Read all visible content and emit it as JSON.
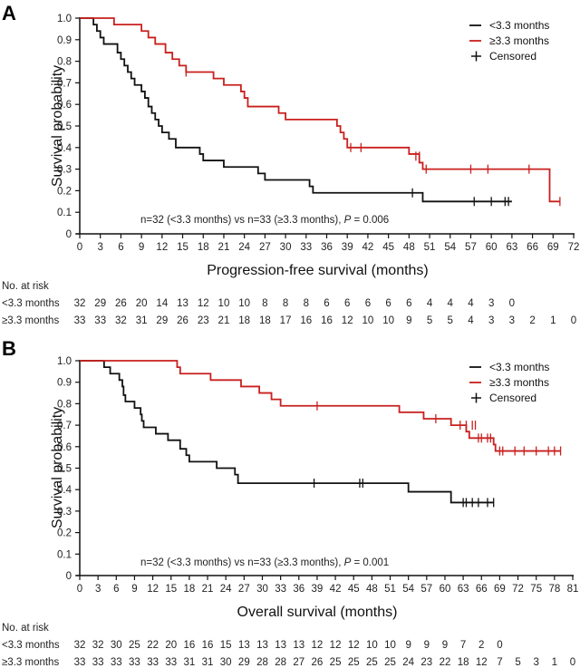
{
  "chart_data": [
    {
      "type": "line",
      "panel": "A",
      "xlabel": "Progression-free survival (months)",
      "ylabel": "Survival probability",
      "xlim": [
        0,
        72
      ],
      "ylim": [
        0,
        1.0
      ],
      "xticks": [
        0,
        3,
        6,
        9,
        12,
        15,
        18,
        21,
        24,
        27,
        30,
        33,
        36,
        39,
        42,
        45,
        48,
        51,
        54,
        57,
        60,
        63,
        66,
        69,
        72
      ],
      "yticks": [
        "0",
        "0.1",
        "0.2",
        "0.3",
        "0.4",
        "0.5",
        "0.6",
        "0.7",
        "0.8",
        "0.9",
        "1.0"
      ],
      "legend": {
        "placement": "top-right",
        "entries": [
          "<3.3 months",
          "≥3.3 months",
          "Censored"
        ]
      },
      "annotation": {
        "text": "n=32 (<3.3 months) vs n=33 (≥3.3 months),",
        "p_label": "P",
        "p_value": "= 0.006"
      },
      "series": [
        {
          "name": "<3.3 months",
          "color": "#111111",
          "steps": [
            [
              0,
              1.0
            ],
            [
              2,
              0.97
            ],
            [
              2.5,
              0.94
            ],
            [
              3,
              0.91
            ],
            [
              3.5,
              0.88
            ],
            [
              5.5,
              0.84
            ],
            [
              6,
              0.81
            ],
            [
              6.5,
              0.78
            ],
            [
              7,
              0.75
            ],
            [
              7.5,
              0.72
            ],
            [
              8,
              0.69
            ],
            [
              9,
              0.66
            ],
            [
              9.5,
              0.63
            ],
            [
              10,
              0.59
            ],
            [
              10.5,
              0.56
            ],
            [
              11,
              0.53
            ],
            [
              11.5,
              0.5
            ],
            [
              12,
              0.47
            ],
            [
              13,
              0.44
            ],
            [
              14,
              0.4
            ],
            [
              17.5,
              0.37
            ],
            [
              18,
              0.34
            ],
            [
              21,
              0.31
            ],
            [
              26,
              0.28
            ],
            [
              27,
              0.25
            ],
            [
              33.5,
              0.22
            ],
            [
              34,
              0.19
            ],
            [
              50,
              0.15
            ]
          ],
          "end": 63,
          "censored": [
            [
              48.5,
              0.19
            ],
            [
              57.5,
              0.15
            ],
            [
              60,
              0.15
            ],
            [
              62,
              0.15
            ],
            [
              62.5,
              0.15
            ]
          ]
        },
        {
          "name": "≥3.3 months",
          "color": "#c8201e",
          "steps": [
            [
              0,
              1.0
            ],
            [
              5,
              0.97
            ],
            [
              9,
              0.94
            ],
            [
              10,
              0.91
            ],
            [
              11,
              0.88
            ],
            [
              12.5,
              0.84
            ],
            [
              13.5,
              0.81
            ],
            [
              14.5,
              0.78
            ],
            [
              15.5,
              0.75
            ],
            [
              19.5,
              0.72
            ],
            [
              21,
              0.69
            ],
            [
              23.5,
              0.66
            ],
            [
              24,
              0.63
            ],
            [
              24.5,
              0.59
            ],
            [
              29,
              0.56
            ],
            [
              30,
              0.53
            ],
            [
              37.5,
              0.5
            ],
            [
              38,
              0.47
            ],
            [
              38.5,
              0.44
            ],
            [
              39,
              0.4
            ],
            [
              48,
              0.37
            ],
            [
              49.5,
              0.33
            ],
            [
              50,
              0.3
            ],
            [
              68.5,
              0.15
            ]
          ],
          "end": 70,
          "censored": [
            [
              15.5,
              0.75
            ],
            [
              39.5,
              0.4
            ],
            [
              41,
              0.4
            ],
            [
              49,
              0.36
            ],
            [
              49.5,
              0.36
            ],
            [
              50.5,
              0.3
            ],
            [
              57,
              0.3
            ],
            [
              59.5,
              0.3
            ],
            [
              65.5,
              0.3
            ],
            [
              70,
              0.15
            ]
          ]
        }
      ],
      "risk_table": {
        "title": "No. at risk",
        "rows": [
          {
            "label": "<3.3 months",
            "values": [
              32,
              29,
              26,
              20,
              14,
              13,
              12,
              10,
              10,
              8,
              8,
              8,
              6,
              6,
              6,
              6,
              6,
              4,
              4,
              4,
              3,
              0
            ]
          },
          {
            "label": "≥3.3 months",
            "values": [
              33,
              33,
              32,
              31,
              29,
              26,
              23,
              21,
              18,
              18,
              17,
              16,
              16,
              12,
              10,
              10,
              9,
              5,
              5,
              4,
              3,
              3,
              2,
              1,
              0
            ]
          }
        ]
      }
    },
    {
      "type": "line",
      "panel": "B",
      "xlabel": "Overall survival (months)",
      "ylabel": "Survival probability",
      "xlim": [
        0,
        81
      ],
      "ylim": [
        0,
        1.0
      ],
      "xticks": [
        0,
        3,
        6,
        9,
        12,
        15,
        18,
        21,
        24,
        27,
        30,
        33,
        36,
        39,
        42,
        45,
        48,
        51,
        54,
        57,
        60,
        63,
        66,
        69,
        72,
        75,
        78,
        81
      ],
      "yticks": [
        "0",
        "0.1",
        "0.2",
        "0.3",
        "0.4",
        "0.5",
        "0.6",
        "0.7",
        "0.8",
        "0.9",
        "1.0"
      ],
      "legend": {
        "placement": "top-right",
        "entries": [
          "<3.3 months",
          "≥3.3 months",
          "Censored"
        ]
      },
      "annotation": {
        "text": "n=32 (<3.3 months) vs n=33 (≥3.3 months),",
        "p_label": "P",
        "p_value": "= 0.001"
      },
      "series": [
        {
          "name": "<3.3 months",
          "color": "#111111",
          "steps": [
            [
              0,
              1.0
            ],
            [
              4,
              0.97
            ],
            [
              5,
              0.94
            ],
            [
              6.5,
              0.91
            ],
            [
              7,
              0.88
            ],
            [
              7.2,
              0.84
            ],
            [
              7.5,
              0.81
            ],
            [
              9,
              0.78
            ],
            [
              10,
              0.75
            ],
            [
              10.2,
              0.72
            ],
            [
              10.5,
              0.69
            ],
            [
              12.5,
              0.66
            ],
            [
              14.5,
              0.63
            ],
            [
              16.5,
              0.59
            ],
            [
              17.5,
              0.56
            ],
            [
              18,
              0.53
            ],
            [
              22.5,
              0.5
            ],
            [
              25.5,
              0.47
            ],
            [
              26,
              0.43
            ],
            [
              54,
              0.39
            ],
            [
              61,
              0.34
            ]
          ],
          "end": 68,
          "censored": [
            [
              38.5,
              0.43
            ],
            [
              46,
              0.43
            ],
            [
              46.5,
              0.43
            ],
            [
              63,
              0.34
            ],
            [
              63.5,
              0.34
            ],
            [
              64.5,
              0.34
            ],
            [
              65.5,
              0.34
            ],
            [
              67,
              0.34
            ],
            [
              68,
              0.34
            ]
          ]
        },
        {
          "name": "≥3.3 months",
          "color": "#c8201e",
          "steps": [
            [
              0,
              1.0
            ],
            [
              16,
              0.97
            ],
            [
              16.5,
              0.94
            ],
            [
              21.5,
              0.91
            ],
            [
              26.5,
              0.88
            ],
            [
              29.5,
              0.85
            ],
            [
              31.5,
              0.82
            ],
            [
              33,
              0.79
            ],
            [
              52.5,
              0.76
            ],
            [
              56.5,
              0.73
            ],
            [
              61,
              0.7
            ],
            [
              63.5,
              0.67
            ],
            [
              64,
              0.64
            ],
            [
              68,
              0.61
            ],
            [
              68.3,
              0.58
            ]
          ],
          "end": 79,
          "censored": [
            [
              39,
              0.79
            ],
            [
              58.5,
              0.73
            ],
            [
              62.5,
              0.7
            ],
            [
              63.5,
              0.7
            ],
            [
              64.5,
              0.7
            ],
            [
              65,
              0.7
            ],
            [
              65.5,
              0.64
            ],
            [
              66,
              0.64
            ],
            [
              67,
              0.64
            ],
            [
              67.5,
              0.64
            ],
            [
              69,
              0.58
            ],
            [
              69.5,
              0.58
            ],
            [
              71.5,
              0.58
            ],
            [
              73,
              0.58
            ],
            [
              75,
              0.58
            ],
            [
              77,
              0.58
            ],
            [
              78,
              0.58
            ],
            [
              79,
              0.58
            ]
          ]
        }
      ],
      "risk_table": {
        "title": "No. at risk",
        "rows": [
          {
            "label": "<3.3 months",
            "values": [
              32,
              32,
              30,
              25,
              22,
              20,
              16,
              16,
              15,
              13,
              13,
              13,
              13,
              12,
              12,
              12,
              10,
              10,
              9,
              9,
              9,
              7,
              2,
              0
            ]
          },
          {
            "label": "≥3.3 months",
            "values": [
              33,
              33,
              33,
              33,
              33,
              33,
              31,
              31,
              30,
              29,
              28,
              28,
              27,
              26,
              25,
              25,
              25,
              25,
              24,
              23,
              22,
              18,
              12,
              7,
              5,
              3,
              1,
              0
            ]
          }
        ]
      }
    }
  ]
}
